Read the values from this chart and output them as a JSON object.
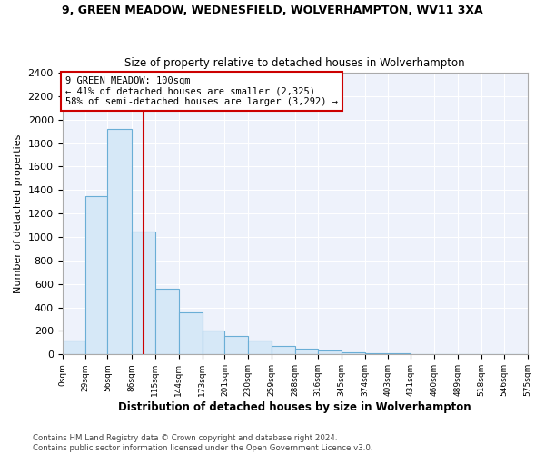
{
  "title1": "9, GREEN MEADOW, WEDNESFIELD, WOLVERHAMPTON, WV11 3XA",
  "title2": "Size of property relative to detached houses in Wolverhampton",
  "xlabel": "Distribution of detached houses by size in Wolverhampton",
  "ylabel": "Number of detached properties",
  "footnote1": "Contains HM Land Registry data © Crown copyright and database right 2024.",
  "footnote2": "Contains public sector information licensed under the Open Government Licence v3.0.",
  "annotation_line1": "9 GREEN MEADOW: 100sqm",
  "annotation_line2": "← 41% of detached houses are smaller (2,325)",
  "annotation_line3": "58% of semi-detached houses are larger (3,292) →",
  "property_size": 100,
  "bar_color": "#d6e8f7",
  "bar_edge_color": "#6aaed6",
  "red_line_color": "#cc0000",
  "annotation_box_color": "#ffffff",
  "annotation_box_edge": "#cc0000",
  "background_color": "#eef2fb",
  "bins": [
    0,
    29,
    56,
    86,
    115,
    144,
    173,
    201,
    230,
    259,
    288,
    316,
    345,
    374,
    403,
    431,
    460,
    489,
    518,
    546,
    575
  ],
  "counts": [
    115,
    1350,
    1920,
    1050,
    560,
    360,
    200,
    160,
    115,
    75,
    50,
    30,
    20,
    12,
    8,
    5,
    3,
    2,
    1,
    1
  ],
  "ylim": [
    0,
    2400
  ],
  "xlim": [
    0,
    575
  ],
  "yticks": [
    0,
    200,
    400,
    600,
    800,
    1000,
    1200,
    1400,
    1600,
    1800,
    2000,
    2200,
    2400
  ],
  "xtick_positions": [
    0,
    29,
    56,
    86,
    115,
    144,
    173,
    201,
    230,
    259,
    288,
    316,
    345,
    374,
    403,
    431,
    460,
    489,
    518,
    546,
    575
  ],
  "xtick_labels": [
    "0sqm",
    "29sqm",
    "56sqm",
    "86sqm",
    "115sqm",
    "144sqm",
    "173sqm",
    "201sqm",
    "230sqm",
    "259sqm",
    "288sqm",
    "316sqm",
    "345sqm",
    "374sqm",
    "403sqm",
    "431sqm",
    "460sqm",
    "489sqm",
    "518sqm",
    "546sqm",
    "575sqm"
  ],
  "fig_bg": "#ffffff"
}
